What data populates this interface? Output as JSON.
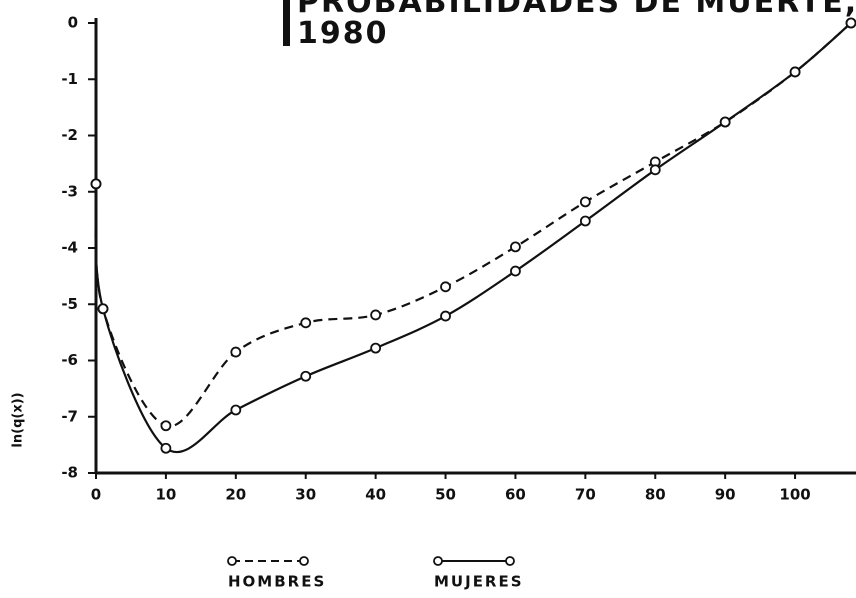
{
  "chart_data": {
    "type": "line",
    "title": [
      "PROBABILIDADES DE MUERTE,",
      "1980"
    ],
    "y_label": "ln(q(x))",
    "xlim": [
      0,
      108
    ],
    "ylim": [
      -8,
      0
    ],
    "xticks": [
      0,
      10,
      20,
      30,
      40,
      50,
      60,
      70,
      80,
      90,
      100
    ],
    "yticks": [
      0,
      -1,
      -2,
      -3,
      -4,
      -5,
      -6,
      -7,
      -8
    ],
    "legend": "bottom",
    "series": [
      {
        "name": "HOMBRES",
        "color": "#111111",
        "dash": "dashed",
        "x": [
          0,
          1,
          10,
          20,
          30,
          40,
          50,
          60,
          70,
          80,
          90,
          100,
          108
        ],
        "values": [
          -2.86,
          -5.08,
          -7.16,
          -5.85,
          -5.33,
          -5.19,
          -4.69,
          -3.98,
          -3.18,
          -2.47,
          -1.76,
          -0.87,
          0
        ]
      },
      {
        "name": "MUJERES",
        "color": "#111111",
        "dash": "solid",
        "x": [
          0,
          1,
          10,
          20,
          30,
          40,
          50,
          60,
          70,
          80,
          90,
          100,
          108
        ],
        "values": [
          -2.86,
          -5.08,
          -7.56,
          -6.88,
          -6.28,
          -5.78,
          -5.21,
          -4.41,
          -3.52,
          -2.61,
          -1.76,
          -0.87,
          0
        ]
      }
    ]
  }
}
